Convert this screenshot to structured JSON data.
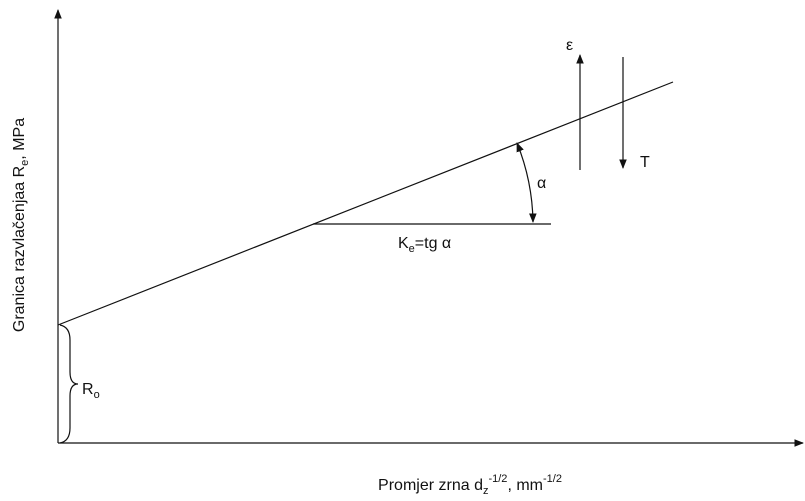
{
  "y_axis_label": {
    "text": "Granica razvlačenjaa R",
    "sub": "e",
    "tail": ", MPa"
  },
  "x_axis_label": {
    "text": "Promjer zrna d",
    "sub": "z",
    "sup": "-1/2",
    "tail": ", mm",
    "sup2": "-1/2"
  },
  "labels": {
    "epsilon": "ε",
    "temperature": "T",
    "angle": "α",
    "slope": {
      "text": "K",
      "sub": "e",
      "tail": "=tg α"
    },
    "intercept": {
      "text": "R",
      "sub": "o"
    }
  }
}
